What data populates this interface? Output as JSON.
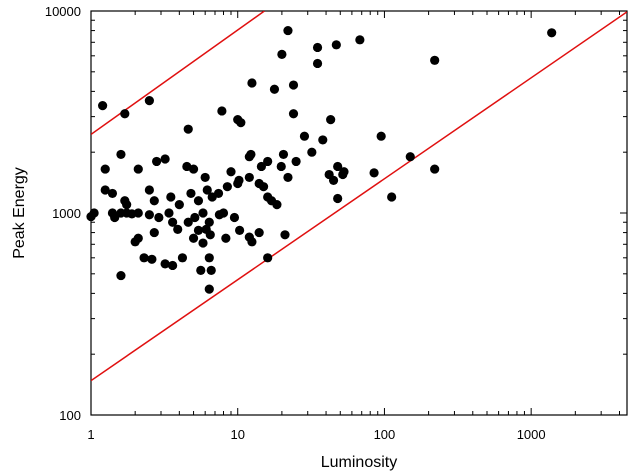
{
  "chart_data": {
    "type": "scatter",
    "title": "",
    "xlabel": "Luminosity",
    "ylabel": "Peak Energy",
    "xscale": "log",
    "yscale": "log",
    "xlim": [
      1,
      4500
    ],
    "ylim": [
      100,
      10000
    ],
    "grid": false,
    "x_tick_labels": [
      {
        "value": 1,
        "label": "1"
      },
      {
        "value": 10,
        "label": "10"
      },
      {
        "value": 100,
        "label": "100"
      },
      {
        "value": 1000,
        "label": "1000"
      }
    ],
    "y_tick_labels": [
      {
        "value": 100,
        "label": "100"
      },
      {
        "value": 1000,
        "label": "1000"
      },
      {
        "value": 10000,
        "label": "10000"
      }
    ],
    "lines": [
      {
        "color": "#e01010",
        "x": [
          1,
          15.2
        ],
        "y": [
          2450,
          10000
        ]
      },
      {
        "color": "#e01010",
        "x": [
          1,
          4500
        ],
        "y": [
          148,
          9900
        ]
      }
    ],
    "series": [
      {
        "color": "#000000",
        "points": [
          [
            1.2,
            3400
          ],
          [
            1.7,
            3100
          ],
          [
            2.5,
            3600
          ],
          [
            4.6,
            2600
          ],
          [
            7.8,
            3200
          ],
          [
            10.0,
            2900
          ],
          [
            10.5,
            2800
          ],
          [
            12.5,
            4400
          ],
          [
            17.8,
            4100
          ],
          [
            20.0,
            6100
          ],
          [
            22.0,
            8000
          ],
          [
            24.0,
            4300
          ],
          [
            35.0,
            6600
          ],
          [
            35.0,
            5500
          ],
          [
            47.0,
            6800
          ],
          [
            68.0,
            7200
          ],
          [
            1380,
            7800
          ],
          [
            220,
            5700
          ],
          [
            1.6,
            1950
          ],
          [
            2.8,
            1800
          ],
          [
            3.2,
            1850
          ],
          [
            4.5,
            1700
          ],
          [
            1.25,
            1650
          ],
          [
            2.1,
            1650
          ],
          [
            5.0,
            1650
          ],
          [
            6.0,
            1500
          ],
          [
            9.0,
            1600
          ],
          [
            10.2,
            1450
          ],
          [
            12.0,
            1900
          ],
          [
            12.3,
            1950
          ],
          [
            14.5,
            1700
          ],
          [
            16.0,
            1800
          ],
          [
            19.8,
            1700
          ],
          [
            20.5,
            1950
          ],
          [
            25.0,
            1800
          ],
          [
            24.0,
            3100
          ],
          [
            28.5,
            2400
          ],
          [
            32.0,
            2000
          ],
          [
            38.0,
            2300
          ],
          [
            43.0,
            2900
          ],
          [
            48.0,
            1700
          ],
          [
            53.0,
            1600
          ],
          [
            42.0,
            1550
          ],
          [
            95.0,
            2400
          ],
          [
            150,
            1900
          ],
          [
            220,
            1650
          ],
          [
            1.25,
            1300
          ],
          [
            1.4,
            1250
          ],
          [
            1.7,
            1150
          ],
          [
            1.75,
            1100
          ],
          [
            2.5,
            1300
          ],
          [
            2.7,
            1150
          ],
          [
            3.5,
            1200
          ],
          [
            4.0,
            1100
          ],
          [
            4.8,
            1250
          ],
          [
            5.4,
            1150
          ],
          [
            6.2,
            1300
          ],
          [
            6.7,
            1200
          ],
          [
            7.4,
            1250
          ],
          [
            8.5,
            1350
          ],
          [
            10.0,
            1400
          ],
          [
            12.0,
            1500
          ],
          [
            14.0,
            1400
          ],
          [
            15.0,
            1350
          ],
          [
            16.0,
            1200
          ],
          [
            17.0,
            1150
          ],
          [
            22.0,
            1500
          ],
          [
            45.0,
            1450
          ],
          [
            52.0,
            1550
          ],
          [
            85.0,
            1580
          ],
          [
            48.0,
            1180
          ],
          [
            112,
            1200
          ],
          [
            1.4,
            1000
          ],
          [
            1.0,
            960
          ],
          [
            1.05,
            1000
          ],
          [
            1.6,
            1000
          ],
          [
            1.75,
            1000
          ],
          [
            1.9,
            990
          ],
          [
            2.1,
            1000
          ],
          [
            2.5,
            980
          ],
          [
            2.9,
            950
          ],
          [
            3.4,
            1000
          ],
          [
            3.6,
            900
          ],
          [
            4.6,
            900
          ],
          [
            5.1,
            950
          ],
          [
            5.8,
            1000
          ],
          [
            6.4,
            900
          ],
          [
            7.5,
            980
          ],
          [
            8.0,
            1000
          ],
          [
            9.5,
            950
          ],
          [
            18.5,
            1100
          ],
          [
            2.1,
            750
          ],
          [
            2.0,
            720
          ],
          [
            2.7,
            800
          ],
          [
            3.9,
            830
          ],
          [
            5.0,
            750
          ],
          [
            5.4,
            820
          ],
          [
            6.1,
            830
          ],
          [
            6.5,
            780
          ],
          [
            8.3,
            750
          ],
          [
            10.3,
            820
          ],
          [
            12.0,
            760
          ],
          [
            12.5,
            720
          ],
          [
            14.0,
            800
          ],
          [
            21.0,
            780
          ],
          [
            1.45,
            950
          ],
          [
            5.8,
            710
          ],
          [
            2.3,
            600
          ],
          [
            2.6,
            590
          ],
          [
            3.2,
            560
          ],
          [
            3.6,
            550
          ],
          [
            4.2,
            600
          ],
          [
            5.6,
            520
          ],
          [
            6.6,
            520
          ],
          [
            6.4,
            600
          ],
          [
            1.6,
            490
          ],
          [
            16.0,
            600
          ],
          [
            6.4,
            420
          ]
        ]
      }
    ]
  }
}
